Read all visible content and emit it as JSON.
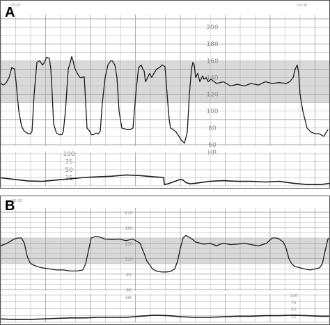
{
  "panels": {
    "A": {
      "label": "A",
      "time_left": "03:20",
      "time_right": "03:30"
    },
    "B": {
      "label": "B",
      "time_left": "00:00"
    }
  },
  "colors": {
    "trace": "#1a1a1a",
    "grid": "#a8a8a8",
    "band": "#d9d9d9",
    "tick": "#8c8c8c"
  },
  "chart_data": [
    {
      "type": "line",
      "panel": "A",
      "title": "",
      "fhr": {
        "axis_label": "",
        "ylim": [
          60,
          210
        ],
        "ticks": [
          "200",
          "180",
          "160",
          "140",
          "120",
          "100",
          "80",
          "60"
        ],
        "x": [
          0,
          4,
          8,
          12,
          16,
          20,
          22,
          26,
          30,
          34,
          38,
          40,
          43,
          45,
          48,
          52,
          56,
          60,
          62,
          66,
          70,
          72,
          74,
          76,
          80,
          84,
          88,
          90,
          93,
          97,
          100,
          102,
          104,
          106,
          110,
          114,
          117,
          120,
          124,
          128,
          130,
          133,
          137,
          140,
          143,
          146,
          150,
          154,
          158,
          160,
          164,
          167,
          170,
          174,
          178,
          182,
          186,
          190,
          194,
          198,
          202,
          204,
          206,
          208,
          211,
          214,
          217,
          220,
          224,
          228,
          232,
          236,
          240,
          242,
          244,
          248,
          252,
          256,
          260,
          264,
          268,
          271,
          274,
          276,
          278,
          280,
          283,
          286,
          290,
          292,
          295,
          298,
          302,
          310,
          320,
          330,
          340,
          350,
          360,
          370,
          380,
          390,
          400,
          410,
          415,
          420,
          423,
          426,
          428,
          430,
          434,
          440,
          446,
          452,
          458,
          464,
          470
        ],
        "y": [
          133,
          131,
          134,
          140,
          152,
          150,
          135,
          100,
          82,
          76,
          74,
          73,
          73,
          76,
          120,
          158,
          160,
          155,
          157,
          164,
          163,
          150,
          120,
          85,
          74,
          72,
          72,
          76,
          100,
          150,
          158,
          165,
          160,
          152,
          145,
          140,
          140,
          141,
          80,
          76,
          72,
          72,
          74,
          73,
          76,
          110,
          140,
          155,
          160,
          160,
          155,
          140,
          100,
          80,
          79,
          78,
          78,
          80,
          120,
          152,
          155,
          150,
          148,
          135,
          140,
          145,
          140,
          145,
          150,
          152,
          155,
          153,
          110,
          90,
          80,
          78,
          75,
          70,
          65,
          62,
          75,
          120,
          150,
          158,
          155,
          140,
          145,
          135,
          142,
          138,
          140,
          135,
          138,
          133,
          135,
          130,
          132,
          130,
          133,
          131,
          135,
          133,
          134,
          133,
          135,
          140,
          150,
          155,
          145,
          120,
          100,
          80,
          75,
          73,
          73,
          70,
          78
        ]
      },
      "uc": {
        "axis_label": "HR",
        "ylim": [
          0,
          100
        ],
        "ticks": [
          "100",
          "75",
          "50",
          "25"
        ],
        "x": [
          0,
          20,
          40,
          60,
          80,
          100,
          120,
          140,
          160,
          180,
          200,
          220,
          234,
          235,
          240,
          250,
          258,
          262,
          266,
          272,
          280,
          300,
          320,
          340,
          360,
          380,
          400,
          420,
          440,
          460,
          474
        ],
        "y": [
          25,
          20,
          15,
          14,
          18,
          22,
          26,
          28,
          30,
          34,
          32,
          28,
          26,
          4,
          6,
          14,
          20,
          18,
          10,
          6,
          8,
          14,
          16,
          14,
          14,
          12,
          14,
          8,
          4,
          4,
          8
        ]
      }
    },
    {
      "type": "line",
      "panel": "B",
      "title": "",
      "fhr": {
        "axis_label": "",
        "ylim": [
          60,
          210
        ],
        "ticks": [
          "210",
          "180",
          "150",
          "120",
          "90",
          "60"
        ],
        "x": [
          0,
          6,
          12,
          18,
          24,
          30,
          34,
          38,
          42,
          46,
          50,
          54,
          60,
          70,
          80,
          90,
          100,
          110,
          118,
          122,
          126,
          130,
          136,
          142,
          150,
          160,
          170,
          180,
          190,
          200,
          206,
          210,
          214,
          218,
          222,
          226,
          232,
          238,
          244,
          250,
          254,
          258,
          262,
          266,
          270,
          275,
          280,
          286,
          292,
          300,
          310,
          320,
          330,
          340,
          350,
          360,
          370,
          376,
          382,
          386,
          390,
          396,
          400,
          406,
          410,
          414,
          418,
          422,
          428,
          436,
          444,
          452,
          458,
          462,
          466,
          470,
          474
        ],
        "y": [
          145,
          148,
          152,
          157,
          160,
          160,
          150,
          125,
          112,
          108,
          106,
          104,
          102,
          100,
          98,
          98,
          96,
          96,
          98,
          110,
          135,
          160,
          163,
          162,
          158,
          157,
          158,
          155,
          158,
          150,
          130,
          115,
          108,
          100,
          97,
          95,
          94,
          94,
          95,
          100,
          115,
          140,
          160,
          165,
          162,
          158,
          152,
          150,
          148,
          150,
          145,
          150,
          147,
          148,
          150,
          147,
          145,
          147,
          150,
          155,
          160,
          160,
          158,
          152,
          140,
          120,
          110,
          105,
          103,
          100,
          98,
          100,
          102,
          110,
          135,
          158,
          160
        ]
      },
      "uc": {
        "axis_label": "HR",
        "ylim": [
          0,
          100
        ],
        "ticks": [
          "100",
          "75",
          "50",
          "25"
        ],
        "x": [
          0,
          20,
          40,
          60,
          80,
          100,
          120,
          140,
          160,
          180,
          200,
          220,
          240,
          260,
          280,
          300,
          320,
          340,
          360,
          380,
          400,
          420,
          440,
          460,
          474
        ],
        "y": [
          12,
          10,
          10,
          12,
          14,
          16,
          16,
          18,
          18,
          18,
          22,
          26,
          24,
          20,
          18,
          18,
          20,
          22,
          22,
          24,
          24,
          26,
          24,
          22,
          22
        ]
      }
    }
  ]
}
